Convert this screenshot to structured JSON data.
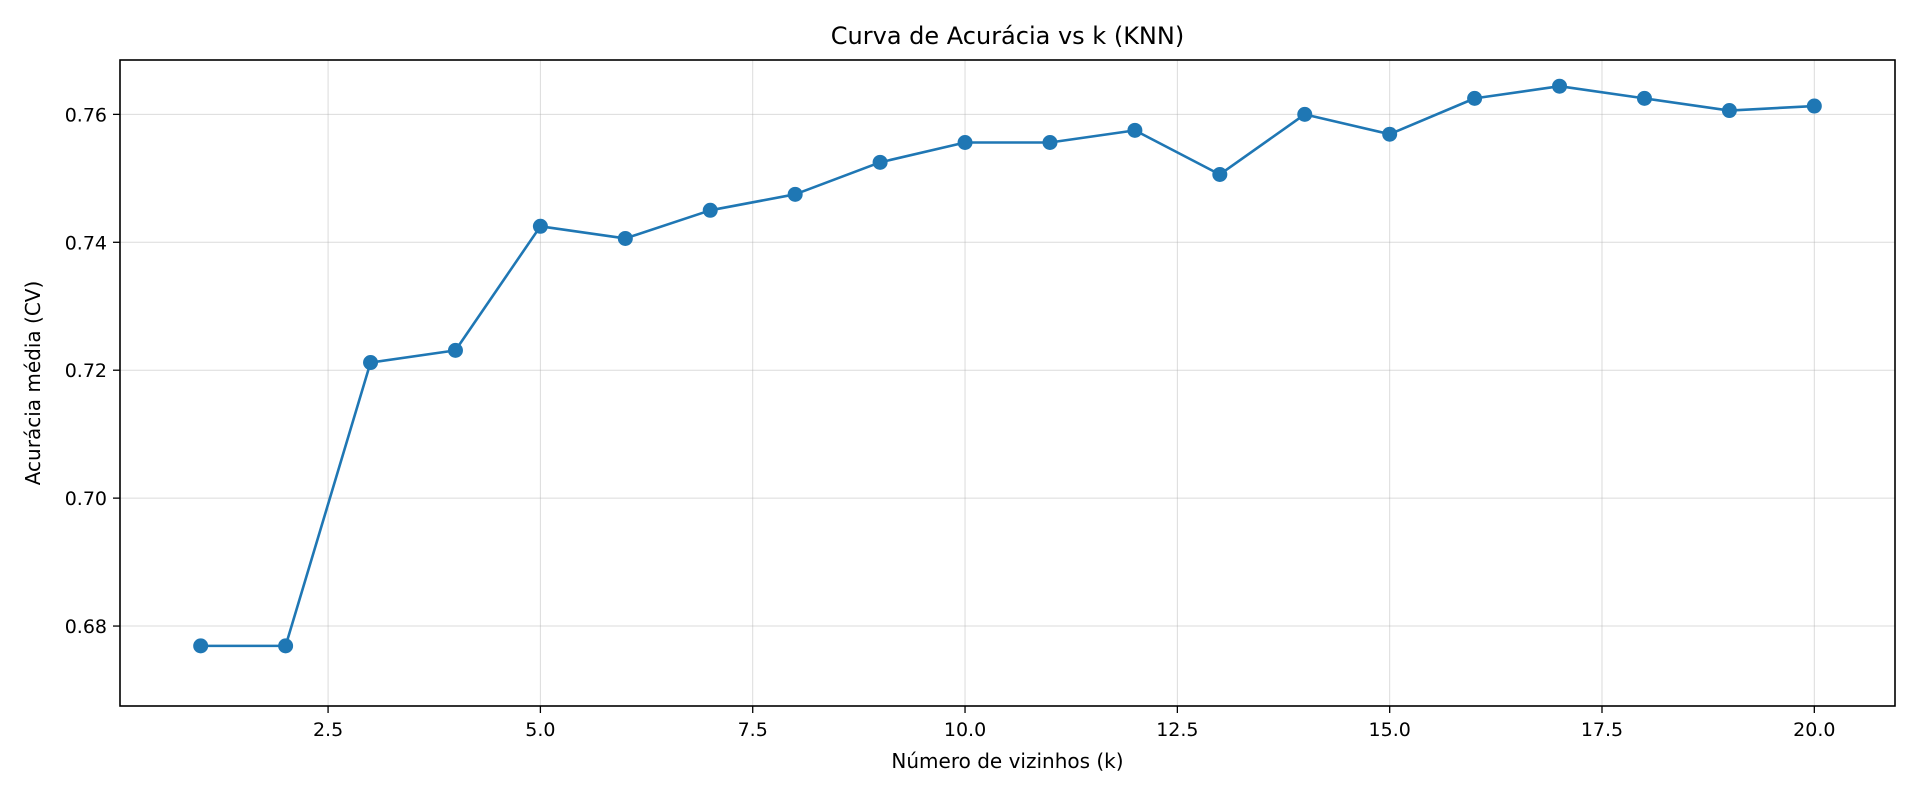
{
  "chart_data": {
    "type": "line",
    "title": "Curva de Acurácia vs k (KNN)",
    "xlabel": "Número de vizinhos (k)",
    "ylabel": "Acurácia média (CV)",
    "xlim": [
      0.05,
      20.95
    ],
    "ylim": [
      0.6675,
      0.7685
    ],
    "xticks": [
      2.5,
      5.0,
      7.5,
      10.0,
      12.5,
      15.0,
      17.5,
      20.0
    ],
    "xtick_labels": [
      "2.5",
      "5.0",
      "7.5",
      "10.0",
      "12.5",
      "15.0",
      "17.5",
      "20.0"
    ],
    "yticks": [
      0.68,
      0.7,
      0.72,
      0.74,
      0.76
    ],
    "ytick_labels": [
      "0.68",
      "0.70",
      "0.72",
      "0.74",
      "0.76"
    ],
    "grid": true,
    "color": "#1f77b4",
    "marker": "circle",
    "series": [
      {
        "x": [
          1,
          2,
          3,
          4,
          5,
          6,
          7,
          8,
          9,
          10,
          11,
          12,
          13,
          14,
          15,
          16,
          17,
          18,
          19,
          20
        ],
        "values": [
          0.6769,
          0.6769,
          0.7212,
          0.7231,
          0.7425,
          0.7406,
          0.745,
          0.7475,
          0.7525,
          0.7556,
          0.7556,
          0.7575,
          0.7506,
          0.76,
          0.7569,
          0.7625,
          0.7644,
          0.7625,
          0.7606,
          0.7613
        ]
      }
    ]
  }
}
